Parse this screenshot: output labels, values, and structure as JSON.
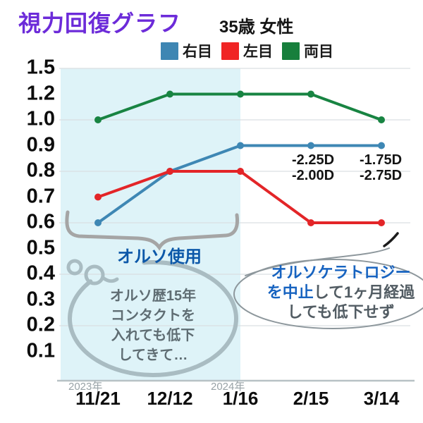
{
  "title": "視力回復グラフ",
  "title_color": "#6c2bd9",
  "subtitle": "35歳 女性",
  "legend": [
    {
      "label": "右目",
      "color": "#3e86b3"
    },
    {
      "label": "左目",
      "color": "#f02525"
    },
    {
      "label": "両目",
      "color": "#177f3c"
    }
  ],
  "chart_data": {
    "type": "line",
    "x": [
      "11/21",
      "12/12",
      "1/16",
      "2/15",
      "3/14"
    ],
    "x_year_labels": [
      {
        "text": "2023年",
        "at": "11/21"
      },
      {
        "text": "2024年",
        "at": "1/16"
      }
    ],
    "y_ticks": [
      "1.5",
      "1.2",
      "1.0",
      "0.9",
      "0.8",
      "0.7",
      "0.6",
      "0.5",
      "0.4",
      "0.3",
      "0.2",
      "0.1"
    ],
    "gridline_ticks": [
      "1.5",
      "1.0",
      "0.8",
      "0.6",
      "0.4",
      "0.2"
    ],
    "series": [
      {
        "name": "右目",
        "color": "#3e87b4",
        "values": [
          0.6,
          0.8,
          0.9,
          0.9,
          0.9
        ]
      },
      {
        "name": "左目",
        "color": "#e32528",
        "values": [
          0.7,
          0.8,
          0.8,
          0.6,
          0.6
        ]
      },
      {
        "name": "両目",
        "color": "#188442",
        "values": [
          1.0,
          1.2,
          1.2,
          1.2,
          1.0
        ]
      }
    ],
    "highlight_region": {
      "from": "11/21",
      "to": "1/16",
      "color": "#def3f8"
    },
    "grid": "horizontal only",
    "legend_position": "top"
  },
  "annotations": {
    "diopter_2_15_line1": "-2.25D",
    "diopter_2_15_line2": "-2.00D",
    "diopter_3_14_line1": "-1.75D",
    "diopter_3_14_line2": "-2.75D",
    "ortho_period_label": "オルソ使用",
    "left_bubble_lines": [
      "オルソ歴15年",
      "コンタクトを",
      "入れても低下",
      "してきて…"
    ],
    "right_bubble_lines": [
      [
        {
          "text": "オルソケラトロジー",
          "emph": true
        }
      ],
      [
        {
          "text": "を中止",
          "emph": true
        },
        {
          "text": "して1ヶ月経過",
          "emph": false
        }
      ],
      [
        {
          "text": "しても低下せず",
          "emph": false
        }
      ]
    ]
  }
}
